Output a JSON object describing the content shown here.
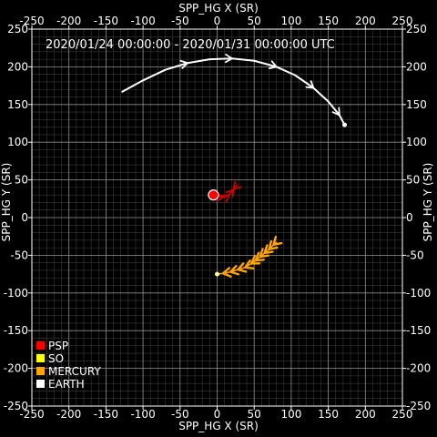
{
  "chart_data": {
    "type": "line",
    "title": "2020/01/24 00:00:00 - 2020/01/31 00:00:00 UTC",
    "xlabel": "SPP_HG X (SR)",
    "ylabel": "SPP_HG Y (SR)",
    "xlim": [
      -250,
      250
    ],
    "ylim": [
      -250,
      250
    ],
    "major_ticks": [
      -250,
      -200,
      -150,
      -100,
      -50,
      0,
      50,
      100,
      150,
      200,
      250
    ],
    "minor_step": 10,
    "grid": true,
    "legend_placement": "bottom-left",
    "legend": [
      {
        "label": "PSP",
        "color": "#ff0000"
      },
      {
        "label": "SO",
        "color": "#ffff00"
      },
      {
        "label": "MERCURY",
        "color": "#ffa500"
      },
      {
        "label": "EARTH",
        "color": "#ffffff"
      }
    ],
    "series": [
      {
        "name": "EARTH",
        "color": "#ffffff",
        "x": [
          -128,
          -100,
          -70,
          -40,
          -10,
          20,
          50,
          80,
          105,
          130,
          150,
          165,
          172
        ],
        "y": [
          167,
          182,
          196,
          205,
          210,
          211,
          208,
          200,
          189,
          172,
          154,
          136,
          123
        ],
        "arrows_at": [
          3,
          5,
          7,
          9,
          11
        ],
        "end_marker": "dot",
        "marker_color": "#ffffff"
      },
      {
        "name": "MERCURY",
        "color": "#ffa500",
        "x": [
          0,
          8,
          18,
          28,
          38,
          46,
          52,
          58,
          64,
          70,
          76,
          80
        ],
        "y": [
          -75,
          -74,
          -72,
          -69,
          -66,
          -61,
          -57,
          -52,
          -47,
          -42,
          -36,
          -33
        ],
        "arrows_at": [
          1,
          2,
          3,
          4,
          5,
          6,
          7,
          8,
          9,
          10
        ],
        "arrow_direction": "backward",
        "start_marker": "dot",
        "marker_color": "#ffff99"
      },
      {
        "name": "PSP",
        "color": "#cc0000",
        "x": [
          -5,
          2,
          8,
          12,
          16,
          19,
          22,
          27,
          22,
          18
        ],
        "y": [
          30,
          28,
          27,
          28,
          30,
          33,
          37,
          43,
          38,
          34
        ],
        "arrows_at": [
          2,
          4,
          6,
          8
        ],
        "start_marker": "big-dot",
        "marker_color": "#ff0000"
      }
    ]
  }
}
